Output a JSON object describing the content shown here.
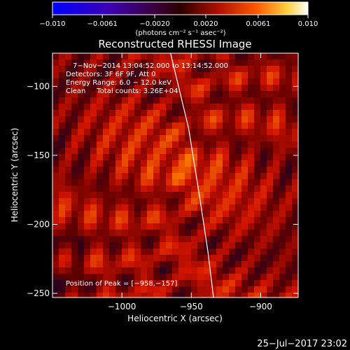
{
  "chart_data": {
    "type": "heatmap",
    "title": "Reconstructed RHESSI Image",
    "xlabel": "Heliocentric X (arcsec)",
    "ylabel": "Heliocentric Y (arcsec)",
    "xlim": [
      -1050,
      -873
    ],
    "ylim": [
      -253,
      -76
    ],
    "x_ticks": [
      -1000,
      -950,
      -900
    ],
    "x_tick_labels": [
      "−1000",
      "−950",
      "−900"
    ],
    "y_ticks": [
      -100,
      -150,
      -200,
      -250
    ],
    "y_tick_labels": [
      "−100",
      "−150",
      "−200",
      "−250"
    ],
    "colorbar": {
      "min": -0.01,
      "max": 0.01,
      "ticks": [
        -0.01,
        -0.0061,
        -0.002,
        0.002,
        0.0061,
        0.01
      ],
      "tick_labels": [
        "−0.010",
        "−0.0061",
        "−0.0020",
        "0.0020",
        "0.0061",
        "0.010"
      ],
      "unit_label": "(photons cm⁻² s⁻¹ asec⁻²)"
    },
    "annotations": {
      "time_range": "7−Nov−2014 13:04:52.000 to 13:14:52.000",
      "detectors": "Detectors: 3F 6F 9F, Att 0",
      "energy_range": "Energy Range: 6.0 − 12.0 keV",
      "clean": "Clean     Total counts: 3.26E+04",
      "peak": "Position of Peak = [−958,−157]"
    },
    "peak_position": [
      -958,
      -157
    ],
    "limb_curve": [
      [
        -965,
        -76
      ],
      [
        -952,
        -130
      ],
      [
        -944,
        -180
      ],
      [
        -938,
        -220
      ],
      [
        -934,
        -253
      ]
    ],
    "timestamp": "25−Jul−2017 23:02"
  }
}
